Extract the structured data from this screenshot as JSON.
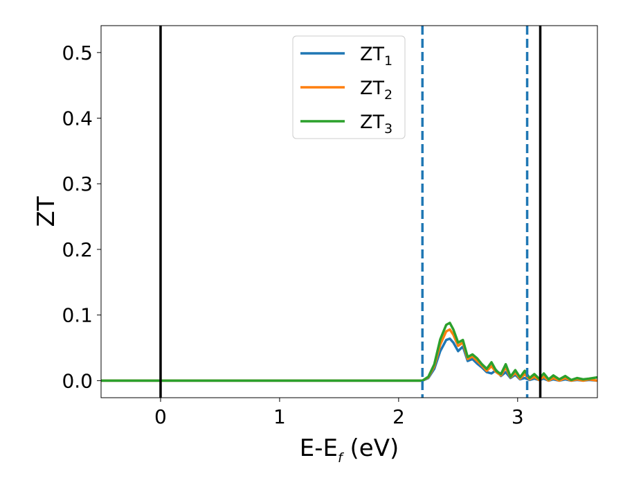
{
  "chart_data": {
    "type": "line",
    "title": "",
    "xlabel": {
      "main": "E-E",
      "sub": "f",
      "suffix": " (eV)"
    },
    "ylabel": "ZT",
    "xlim": [
      -0.5,
      3.67
    ],
    "ylim": [
      -0.026,
      0.541
    ],
    "x_ticks": [
      0,
      1,
      2,
      3
    ],
    "x_tick_labels": [
      "0",
      "1",
      "2",
      "3"
    ],
    "y_ticks": [
      0.0,
      0.1,
      0.2,
      0.3,
      0.4,
      0.5
    ],
    "y_tick_labels": [
      "0.0",
      "0.1",
      "0.2",
      "0.3",
      "0.4",
      "0.5"
    ],
    "grid": false,
    "legend_position": "top-center",
    "vlines": [
      {
        "x": 0.0,
        "style": "solid",
        "color": "#000000"
      },
      {
        "x": 2.2,
        "style": "dashed",
        "color": "#1f77b4"
      },
      {
        "x": 3.08,
        "style": "dashed",
        "color": "#1f77b4"
      },
      {
        "x": 3.19,
        "style": "solid",
        "color": "#000000"
      }
    ],
    "series": [
      {
        "name": "ZT",
        "name_sub": "1",
        "color": "#1f77b4",
        "x": [
          -0.5,
          0.0,
          1.0,
          2.0,
          2.2,
          2.25,
          2.3,
          2.35,
          2.4,
          2.43,
          2.46,
          2.5,
          2.54,
          2.58,
          2.62,
          2.66,
          2.7,
          2.74,
          2.78,
          2.82,
          2.86,
          2.9,
          2.94,
          2.98,
          3.02,
          3.06,
          3.1,
          3.14,
          3.18,
          3.22,
          3.26,
          3.3,
          3.35,
          3.4,
          3.45,
          3.5,
          3.55,
          3.6,
          3.67
        ],
        "y": [
          0.0,
          0.0,
          0.0,
          0.0,
          0.0,
          0.004,
          0.018,
          0.045,
          0.062,
          0.064,
          0.058,
          0.045,
          0.052,
          0.03,
          0.033,
          0.026,
          0.02,
          0.013,
          0.011,
          0.016,
          0.007,
          0.013,
          0.004,
          0.009,
          0.002,
          0.004,
          0.001,
          0.003,
          0.001,
          0.003,
          0.0,
          0.002,
          0.0,
          0.002,
          0.0,
          0.001,
          0.0,
          0.001,
          0.0
        ]
      },
      {
        "name": "ZT",
        "name_sub": "2",
        "color": "#ff7f0e",
        "x": [
          -0.5,
          0.0,
          1.0,
          2.0,
          2.2,
          2.25,
          2.3,
          2.35,
          2.4,
          2.43,
          2.46,
          2.5,
          2.54,
          2.58,
          2.62,
          2.66,
          2.7,
          2.74,
          2.78,
          2.82,
          2.86,
          2.9,
          2.94,
          2.98,
          3.02,
          3.06,
          3.1,
          3.14,
          3.18,
          3.22,
          3.26,
          3.3,
          3.35,
          3.4,
          3.45,
          3.5,
          3.55,
          3.6,
          3.67
        ],
        "y": [
          0.0,
          0.0,
          0.0,
          0.0,
          0.0,
          0.005,
          0.022,
          0.055,
          0.075,
          0.078,
          0.07,
          0.053,
          0.058,
          0.033,
          0.037,
          0.03,
          0.023,
          0.015,
          0.022,
          0.013,
          0.008,
          0.02,
          0.005,
          0.012,
          0.003,
          0.01,
          0.002,
          0.006,
          0.001,
          0.006,
          0.0,
          0.004,
          0.0,
          0.004,
          0.0,
          0.002,
          0.0,
          0.002,
          0.0
        ]
      },
      {
        "name": "ZT",
        "name_sub": "3",
        "color": "#2ca02c",
        "x": [
          -0.5,
          0.0,
          1.0,
          2.0,
          2.2,
          2.25,
          2.3,
          2.35,
          2.4,
          2.43,
          2.46,
          2.5,
          2.54,
          2.58,
          2.62,
          2.66,
          2.7,
          2.74,
          2.78,
          2.82,
          2.86,
          2.9,
          2.94,
          2.98,
          3.02,
          3.06,
          3.1,
          3.14,
          3.18,
          3.22,
          3.26,
          3.3,
          3.35,
          3.4,
          3.45,
          3.5,
          3.55,
          3.6,
          3.67
        ],
        "y": [
          0.0,
          0.0,
          0.0,
          0.0,
          0.0,
          0.006,
          0.025,
          0.063,
          0.085,
          0.088,
          0.078,
          0.058,
          0.062,
          0.036,
          0.04,
          0.034,
          0.025,
          0.018,
          0.028,
          0.015,
          0.01,
          0.025,
          0.006,
          0.016,
          0.005,
          0.015,
          0.004,
          0.01,
          0.003,
          0.011,
          0.002,
          0.008,
          0.002,
          0.007,
          0.001,
          0.004,
          0.002,
          0.003,
          0.005
        ]
      }
    ]
  }
}
